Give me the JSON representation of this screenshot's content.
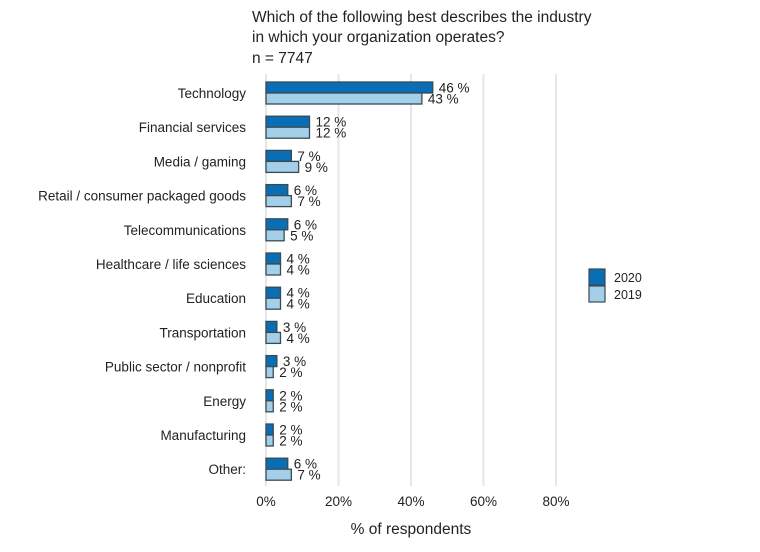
{
  "chart_data": {
    "type": "bar",
    "orientation": "horizontal",
    "title_lines": [
      "Which of the following best describes the industry",
      "in which your organization operates?"
    ],
    "subtitle": "n = 7747",
    "xlabel": "% of respondents",
    "ylabel": "",
    "xlim": [
      0,
      80
    ],
    "xticks": [
      0,
      20,
      40,
      60,
      80
    ],
    "xtick_labels": [
      "0%",
      "20%",
      "40%",
      "60%",
      "80%"
    ],
    "grid": "vertical",
    "legend_position": "right",
    "categories": [
      "Technology",
      "Financial services",
      "Media / gaming",
      "Retail / consumer packaged goods",
      "Telecommunications",
      "Healthcare / life sciences",
      "Education",
      "Transportation",
      "Public sector / nonprofit",
      "Energy",
      "Manufacturing",
      "Other:"
    ],
    "series": [
      {
        "name": "2020",
        "color": "#0a6eb4",
        "values": [
          46,
          12,
          7,
          6,
          6,
          4,
          4,
          3,
          3,
          2,
          2,
          6
        ],
        "labels": [
          "46 %",
          "12 %",
          "7 %",
          "6 %",
          "6 %",
          "4 %",
          "4 %",
          "3 %",
          "3 %",
          "2 %",
          "2 %",
          "6 %"
        ]
      },
      {
        "name": "2019",
        "color": "#a3cfe8",
        "values": [
          43,
          12,
          9,
          7,
          5,
          4,
          4,
          4,
          2,
          2,
          2,
          7
        ],
        "labels": [
          "43 %",
          "12 %",
          "9 %",
          "7 %",
          "5 %",
          "4 %",
          "4 %",
          "4 %",
          "2 %",
          "2 %",
          "2 %",
          "7 %"
        ]
      }
    ],
    "bar_border_color": "#3a4a55",
    "grid_color": "#e6e6e6"
  }
}
